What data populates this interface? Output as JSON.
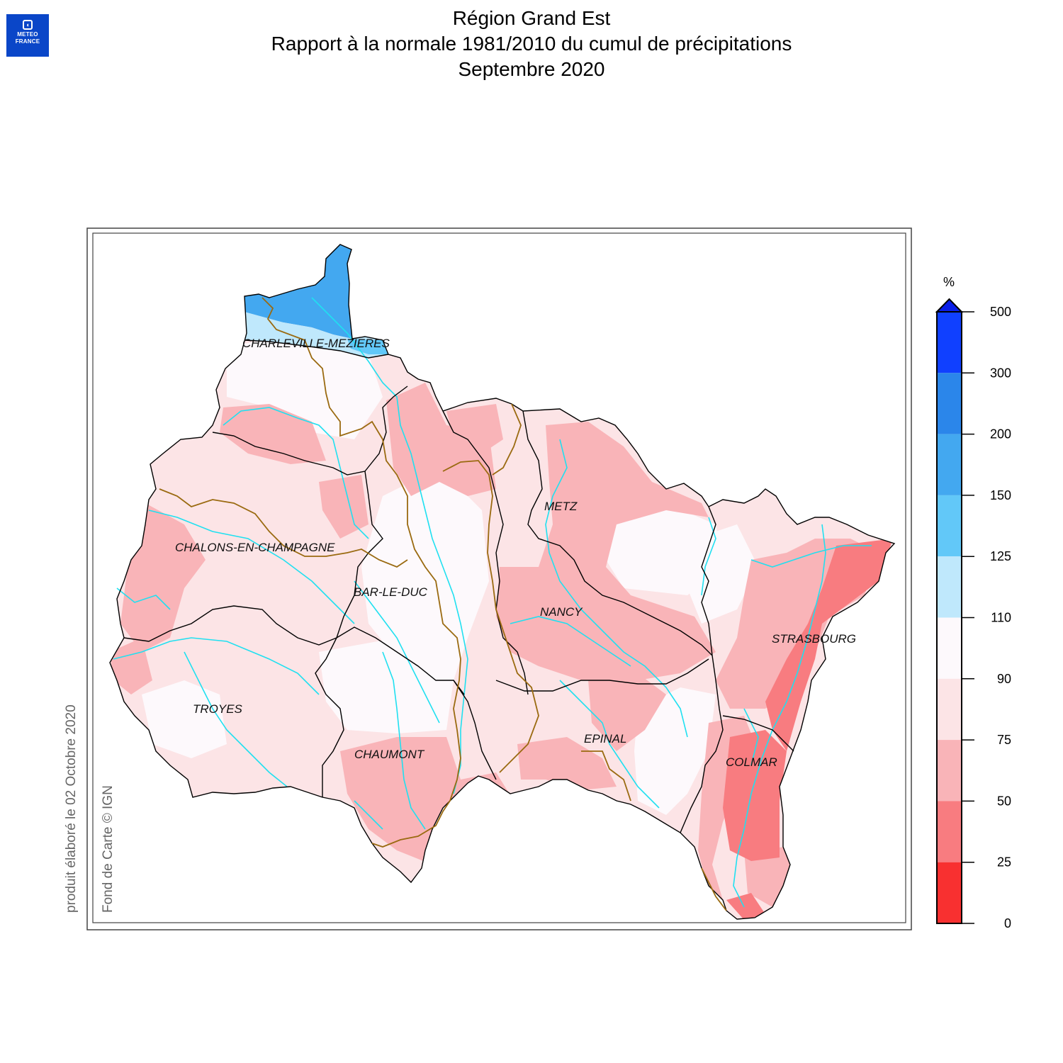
{
  "logo": {
    "line1": "METEO",
    "line2": "FRANCE"
  },
  "header": {
    "title_line1": "Région Grand Est",
    "title_line2": "Rapport à la normale 1981/2010 du cumul de précipitations",
    "title_line3": "Septembre 2020"
  },
  "credits": {
    "produced": "produit élaboré le 02 Octobre 2020",
    "basemap": "Fond de Carte © IGN"
  },
  "cities": [
    {
      "name": "CHARLEVILLE-MEZIERES"
    },
    {
      "name": "METZ"
    },
    {
      "name": "CHALONS-EN-CHAMPAGNE"
    },
    {
      "name": "BAR-LE-DUC"
    },
    {
      "name": "NANCY"
    },
    {
      "name": "STRASBOURG"
    },
    {
      "name": "TROYES"
    },
    {
      "name": "EPINAL"
    },
    {
      "name": "CHAUMONT"
    },
    {
      "name": "COLMAR"
    }
  ],
  "legend": {
    "unit": "%",
    "ticks": [
      "500",
      "300",
      "200",
      "150",
      "125",
      "110",
      "90",
      "75",
      "50",
      "25",
      "0"
    ],
    "bins": [
      {
        "from": 300,
        "to": 500,
        "color": "#1040ff"
      },
      {
        "from": 200,
        "to": 300,
        "color": "#2b86ea"
      },
      {
        "from": 150,
        "to": 200,
        "color": "#43a8f0"
      },
      {
        "from": 125,
        "to": 150,
        "color": "#62c8f8"
      },
      {
        "from": 110,
        "to": 125,
        "color": "#bfe8fc"
      },
      {
        "from": 90,
        "to": 110,
        "color": "#fdf9fc"
      },
      {
        "from": 75,
        "to": 90,
        "color": "#fce4e6"
      },
      {
        "from": 50,
        "to": 75,
        "color": "#f9b4b8"
      },
      {
        "from": 25,
        "to": 50,
        "color": "#f87c80"
      },
      {
        "from": 0,
        "to": 25,
        "color": "#f83030"
      }
    ],
    "over_color": "#0a1ee8"
  },
  "colors": {
    "frame": "#444444",
    "department_border": "#000000",
    "region_border": "#9a6a10",
    "river": "#20e0f0"
  }
}
